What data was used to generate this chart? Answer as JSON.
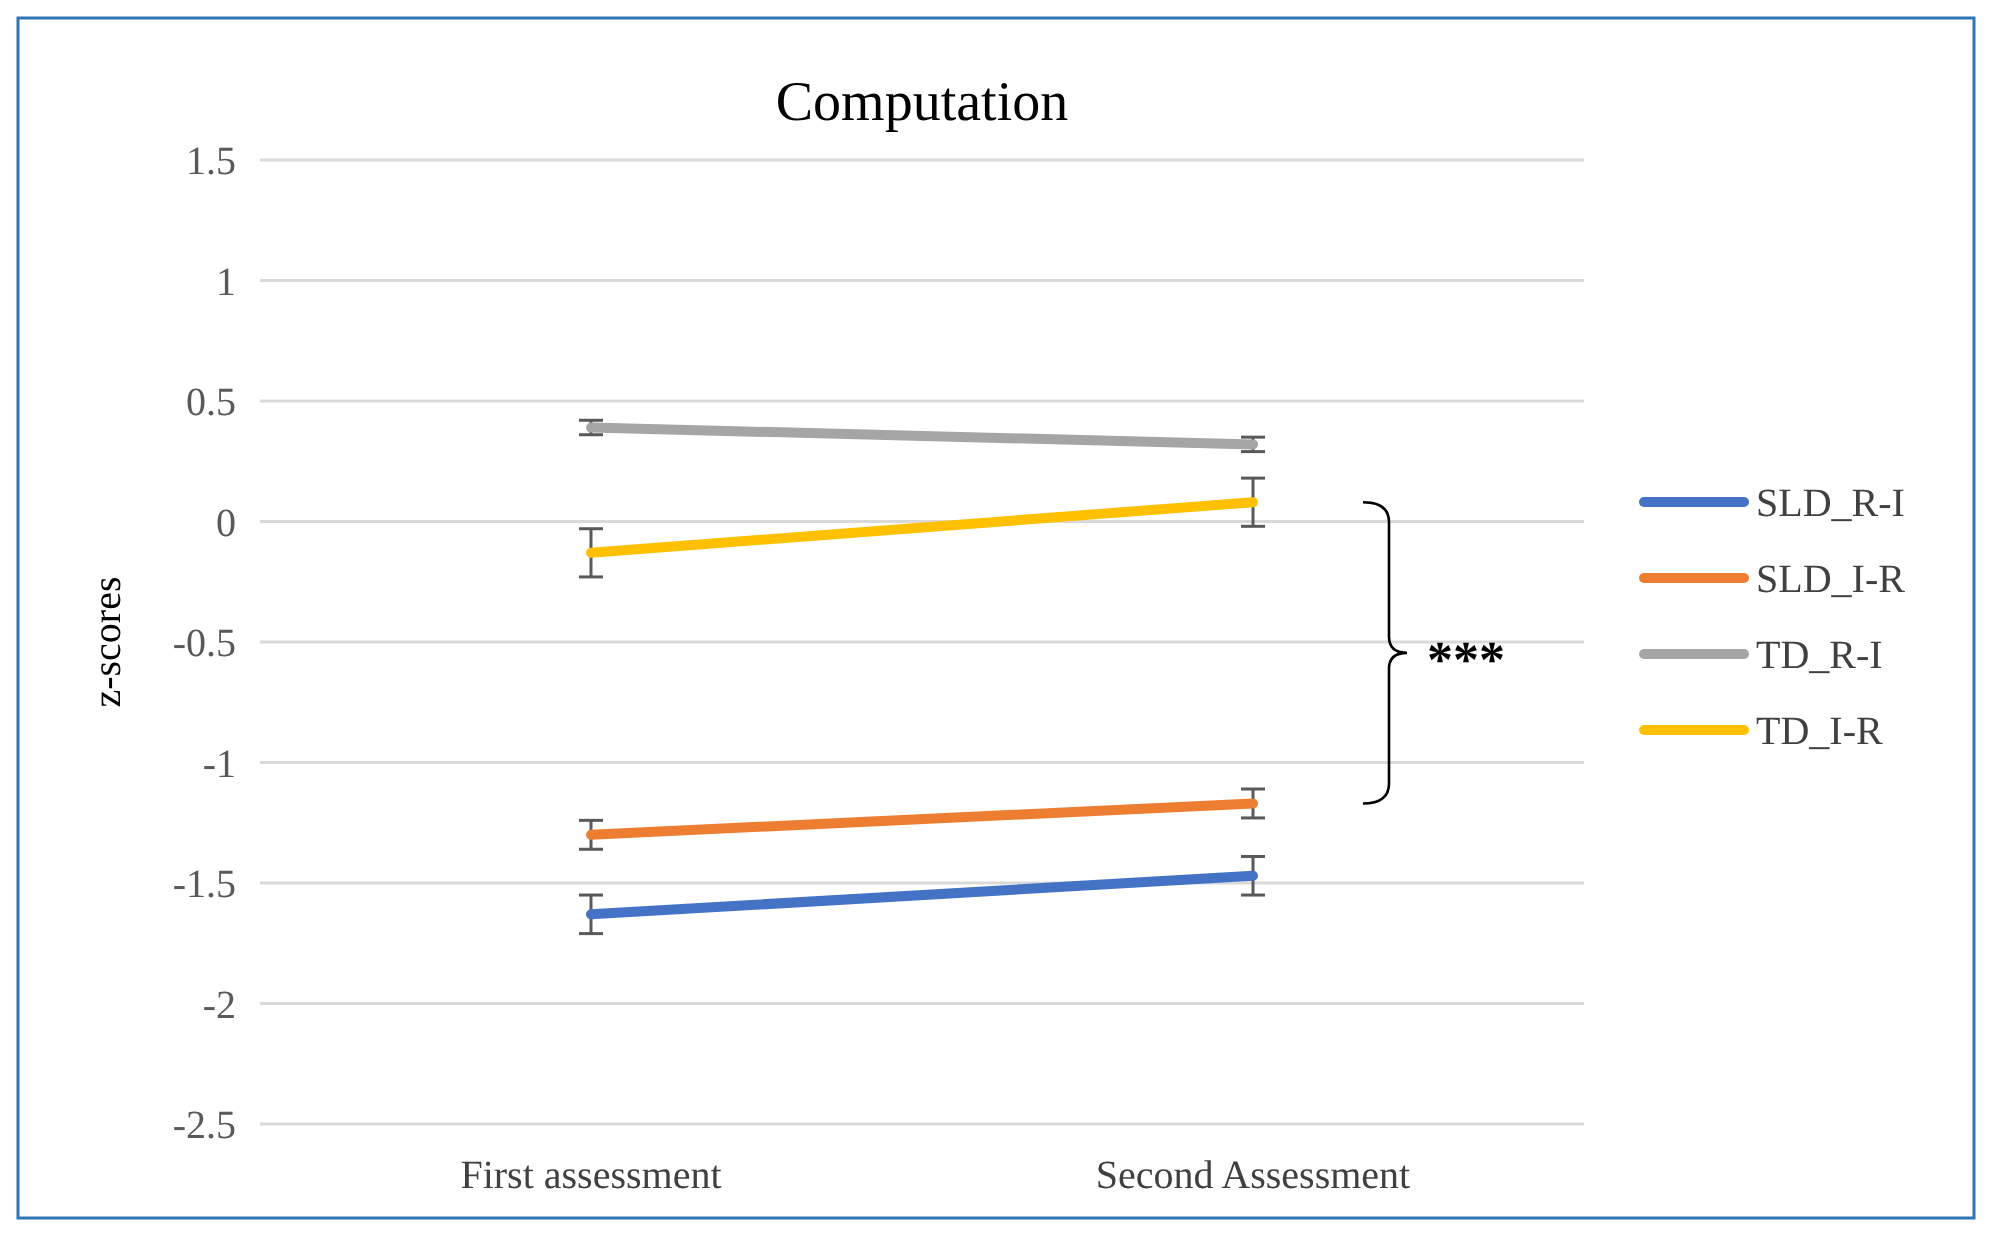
{
  "chart_data": {
    "type": "line",
    "title": "Computation",
    "ylabel": "z-scores",
    "categories": [
      "First assessment",
      "Second Assessment"
    ],
    "series": [
      {
        "name": "SLD_R-I",
        "color": "#4472c4",
        "values": [
          -1.63,
          -1.47
        ],
        "errors": [
          0.08,
          0.08
        ]
      },
      {
        "name": "SLD_I-R",
        "color": "#ed7d31",
        "values": [
          -1.3,
          -1.17
        ],
        "errors": [
          0.06,
          0.06
        ]
      },
      {
        "name": "TD_R-I",
        "color": "#a5a5a5",
        "values": [
          0.39,
          0.32
        ],
        "errors": [
          0.03,
          0.03
        ]
      },
      {
        "name": "TD_I-R",
        "color": "#ffc000",
        "values": [
          -0.13,
          0.08
        ],
        "errors": [
          0.1,
          0.1
        ]
      }
    ],
    "ylim": [
      -2.5,
      1.5
    ],
    "yticks": [
      -2.5,
      -2,
      -1.5,
      -1,
      -0.5,
      0,
      0.5,
      1,
      1.5
    ],
    "grid": "y",
    "legend": "right",
    "marker": "none",
    "line_style": "solid",
    "annotations": [
      "***"
    ]
  }
}
